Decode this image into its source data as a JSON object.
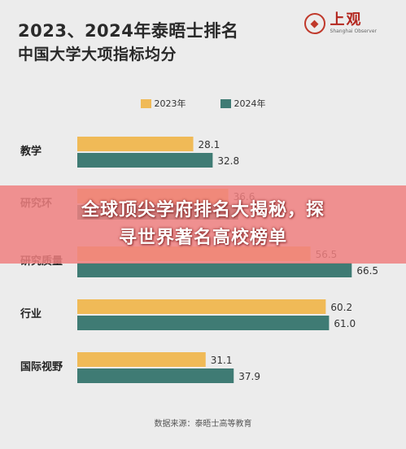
{
  "header": {
    "title_line1": "2023、2024年泰晤士排名",
    "title_line2": "中国大学大项指标均分"
  },
  "logo": {
    "name": "上观",
    "sub": "Shanghai Observer",
    "icon": "logo-mark-icon",
    "color": "#c0392b"
  },
  "banner": {
    "line1": "全球顶尖学府排名大揭秘，探",
    "line2": "寻世界著名高校榜单"
  },
  "source": "数据来源：泰晤士高等教育",
  "colors": {
    "series2023": "#f0ba57",
    "series2024": "#3f7b74",
    "background": "#ececec"
  },
  "chart_data": {
    "type": "bar",
    "orientation": "horizontal",
    "categories": [
      "教学",
      "研究环境",
      "研究质量",
      "行业",
      "国际视野"
    ],
    "category_labels_visible": [
      "教学",
      "研究环",
      "研究质量",
      "行业",
      "国际视野"
    ],
    "series": [
      {
        "name": "2023年",
        "values": [
          28.1,
          36.6,
          56.5,
          60.2,
          31.1
        ],
        "value_labels": [
          "28.1",
          "36.6",
          "56.5",
          "60.2",
          "31.1"
        ]
      },
      {
        "name": "2024年",
        "values": [
          32.8,
          39.0,
          66.5,
          61.0,
          37.9
        ],
        "value_labels": [
          "32.8",
          "",
          "66.5",
          "61.0",
          "37.9"
        ]
      }
    ],
    "xlim": [
      0,
      69
    ],
    "grid": false,
    "legend": "top"
  }
}
